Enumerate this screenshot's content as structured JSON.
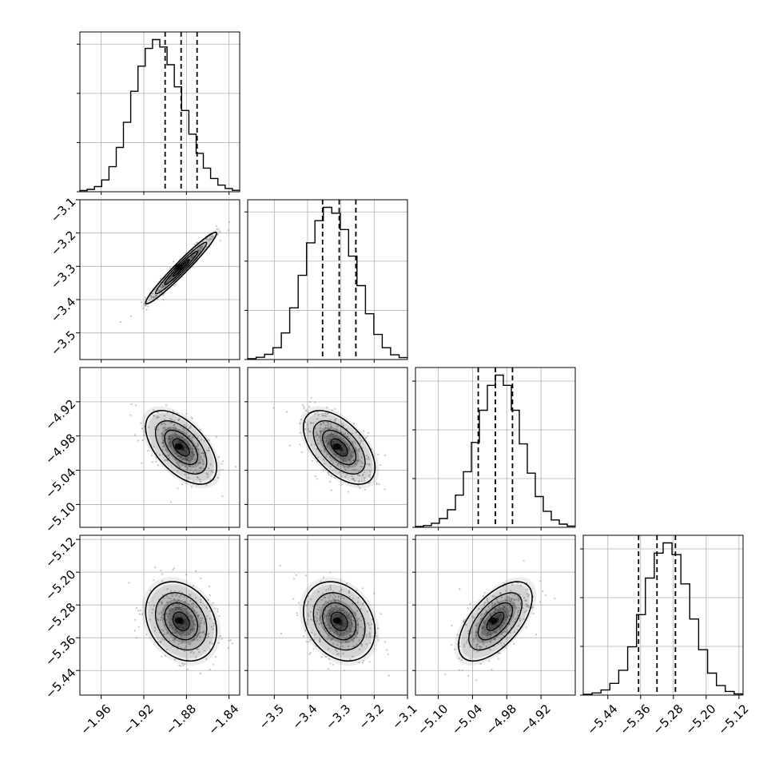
{
  "colors": {
    "line": "#000000",
    "grid": "#b0b0b0",
    "scatter": "#8c8c8c",
    "background": "#ffffff"
  },
  "chart_data": {
    "type": "corner",
    "title": "",
    "grid": true,
    "parameters": [
      {
        "index": 0,
        "range": [
          -1.98,
          -1.83
        ],
        "ticks": [
          -1.96,
          -1.92,
          -1.88,
          -1.84
        ],
        "tick_labels": [
          "−1.96",
          "−1.92",
          "−1.88",
          "−1.84"
        ],
        "quantiles": [
          -1.9,
          -1.885,
          -1.87
        ],
        "center": -1.885,
        "sigma": 0.0155,
        "hist_counts": [
          0.8,
          1.6,
          3.5,
          8,
          17,
          30,
          47,
          68,
          85,
          97,
          103,
          98,
          86,
          71,
          55,
          39,
          26,
          16,
          9,
          4.5,
          2.2,
          1
        ]
      },
      {
        "index": 1,
        "range": [
          -3.58,
          -3.1
        ],
        "ticks": [
          -3.5,
          -3.4,
          -3.3,
          -3.2,
          -3.1
        ],
        "tick_labels": [
          "−3.5",
          "−3.4",
          "−3.3",
          "−3.2",
          "−3.1"
        ],
        "quantiles": [
          -3.355,
          -3.305,
          -3.255
        ],
        "center": -3.305,
        "sigma": 0.05,
        "hist_counts": [
          0.6,
          1.5,
          3.5,
          8,
          18,
          35,
          57,
          79,
          94,
          103,
          99,
          88,
          70,
          50,
          31,
          17,
          8,
          3.2,
          1.3
        ]
      },
      {
        "index": 2,
        "range": [
          -5.14,
          -4.86
        ],
        "ticks": [
          -5.1,
          -5.04,
          -4.98,
          -4.92
        ],
        "tick_labels": [
          "−5.10",
          "−5.04",
          "−4.98",
          "−4.92"
        ],
        "quantiles": [
          -5.03,
          -5.0,
          -4.97
        ],
        "center": -5.0,
        "sigma": 0.03,
        "hist_counts": [
          0.6,
          1.2,
          2.8,
          6,
          12,
          22,
          38,
          58,
          80,
          97,
          104,
          97,
          80,
          57,
          37,
          21,
          11,
          5,
          2.2,
          0.9
        ]
      },
      {
        "index": 3,
        "range": [
          -5.5,
          -5.11
        ],
        "ticks": [
          -5.44,
          -5.36,
          -5.28,
          -5.2,
          -5.12
        ],
        "tick_labels": [
          "−5.44",
          "−5.36",
          "−5.28",
          "−5.20",
          "−5.12"
        ],
        "quantiles": [
          -5.365,
          -5.32,
          -5.275
        ],
        "center": -5.32,
        "sigma": 0.045,
        "hist_counts": [
          0.6,
          1.5,
          3.5,
          8,
          17,
          33,
          55,
          80,
          97,
          104,
          96,
          76,
          52,
          31,
          15,
          6.5,
          2.5,
          0.8
        ]
      }
    ],
    "correlations": {
      "1_0": 0.97,
      "2_0": -0.55,
      "2_1": -0.55,
      "3_0": -0.25,
      "3_1": -0.25,
      "3_2": 0.6
    }
  }
}
